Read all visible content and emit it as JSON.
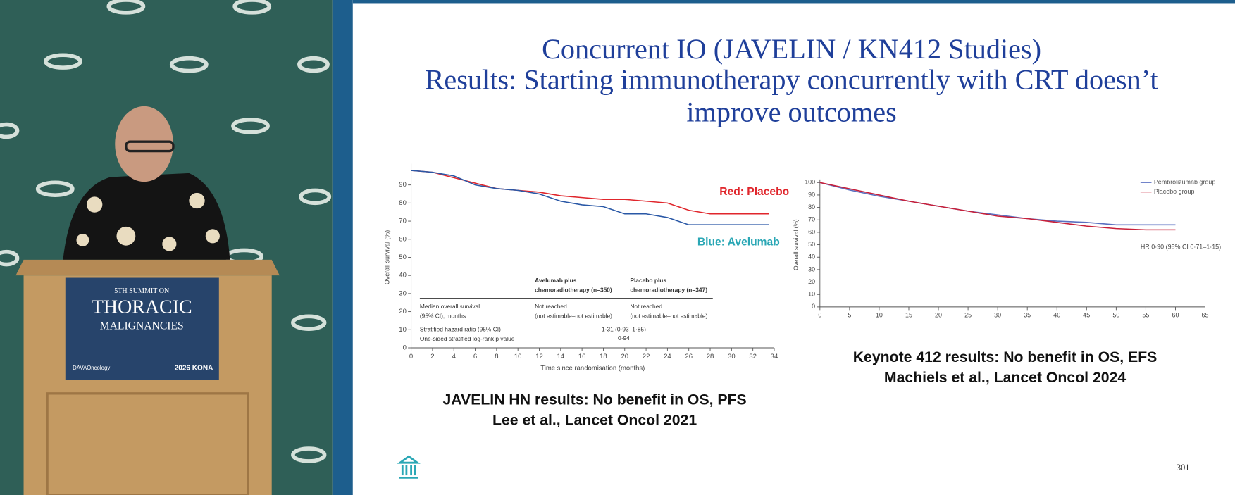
{
  "video": {
    "sign": {
      "line1": "5TH SUMMIT ON",
      "line2": "THORACIC",
      "line3": "MALIGNANCIES",
      "sponsor": "DAVAOncology",
      "event": "2026 KONA"
    }
  },
  "slide": {
    "title": [
      "Concurrent IO (JAVELIN / KN412 Studies)",
      "Results: Starting immunotherapy concurrently with CRT doesn’t",
      "improve outcomes"
    ],
    "captions": [
      [
        "JAVELIN HN results: No benefit in OS, PFS",
        "Lee et al., Lancet Oncol 2021"
      ],
      [
        "Keynote 412 results: No benefit in OS, EFS",
        "Machiels et al., Lancet Oncol 2024"
      ]
    ],
    "page_number": "301"
  },
  "chart_data": [
    {
      "type": "line",
      "xlabel": "Time since randomisation (months)",
      "ylabel": "Overall survival (%)",
      "xlim": [
        0,
        34
      ],
      "ylim": [
        0,
        100
      ],
      "xticks": [
        0,
        2,
        4,
        6,
        8,
        10,
        12,
        14,
        16,
        18,
        20,
        22,
        24,
        26,
        28,
        30,
        32,
        34
      ],
      "yticks": [
        0,
        10,
        20,
        30,
        40,
        50,
        60,
        70,
        80,
        90
      ],
      "x": [
        0,
        2,
        4,
        6,
        8,
        10,
        12,
        14,
        16,
        18,
        20,
        22,
        24,
        26,
        28,
        30,
        32,
        33.5
      ],
      "series": [
        {
          "name": "Red: Placebo",
          "color": "#e0262c",
          "values": [
            98,
            97,
            94,
            91,
            88,
            87,
            86,
            84,
            83,
            82,
            82,
            81,
            80,
            76,
            74,
            74,
            74,
            74
          ]
        },
        {
          "name": "Blue: Avelumab",
          "color": "#2a58a6",
          "values": [
            98,
            97,
            95,
            90,
            88,
            87,
            85,
            81,
            79,
            78,
            74,
            74,
            72,
            68,
            68,
            68,
            68,
            68
          ]
        }
      ],
      "legend_colors": [
        "#e0262c",
        "#2aa7b5"
      ],
      "table": {
        "columns": [
          [
            "Avelumab plus",
            "chemoradiotherapy (n=350)"
          ],
          [
            "Placebo plus",
            "chemoradiotherapy (n=347)"
          ]
        ],
        "rows": [
          {
            "label": [
              "Median overall survival",
              "(95% CI), months"
            ],
            "cells": [
              [
                "Not reached",
                "(not estimable–not estimable)"
              ],
              [
                "Not reached",
                "(not estimable–not estimable)"
              ]
            ]
          },
          {
            "label": [
              "Stratified hazard ratio (95% CI)",
              "One-sided stratified log-rank p value"
            ],
            "values": [
              "1·31 (0·93–1·85)",
              "0·94"
            ]
          }
        ]
      }
    },
    {
      "type": "line",
      "ylabel": "Overall survival (%)",
      "xlim": [
        0,
        65
      ],
      "ylim": [
        0,
        100
      ],
      "xticks": [
        0,
        5,
        10,
        15,
        20,
        25,
        30,
        35,
        40,
        45,
        50,
        55,
        60,
        65
      ],
      "yticks": [
        0,
        10,
        20,
        30,
        40,
        50,
        60,
        70,
        80,
        90,
        100
      ],
      "x": [
        0,
        5,
        10,
        15,
        20,
        25,
        30,
        35,
        40,
        45,
        50,
        55,
        60
      ],
      "series": [
        {
          "name": "Pembrolizumab group",
          "color": "#5a6fc0",
          "values": [
            100,
            94,
            89,
            85,
            81,
            77,
            74,
            71,
            69,
            68,
            66,
            66,
            66
          ]
        },
        {
          "name": "Placebo group",
          "color": "#c8203a",
          "values": [
            100,
            95,
            90,
            85,
            81,
            77,
            73,
            71,
            68,
            65,
            63,
            62,
            62
          ]
        }
      ],
      "annotation": "HR 0·90 (95% CI 0·71–1·15)"
    }
  ]
}
